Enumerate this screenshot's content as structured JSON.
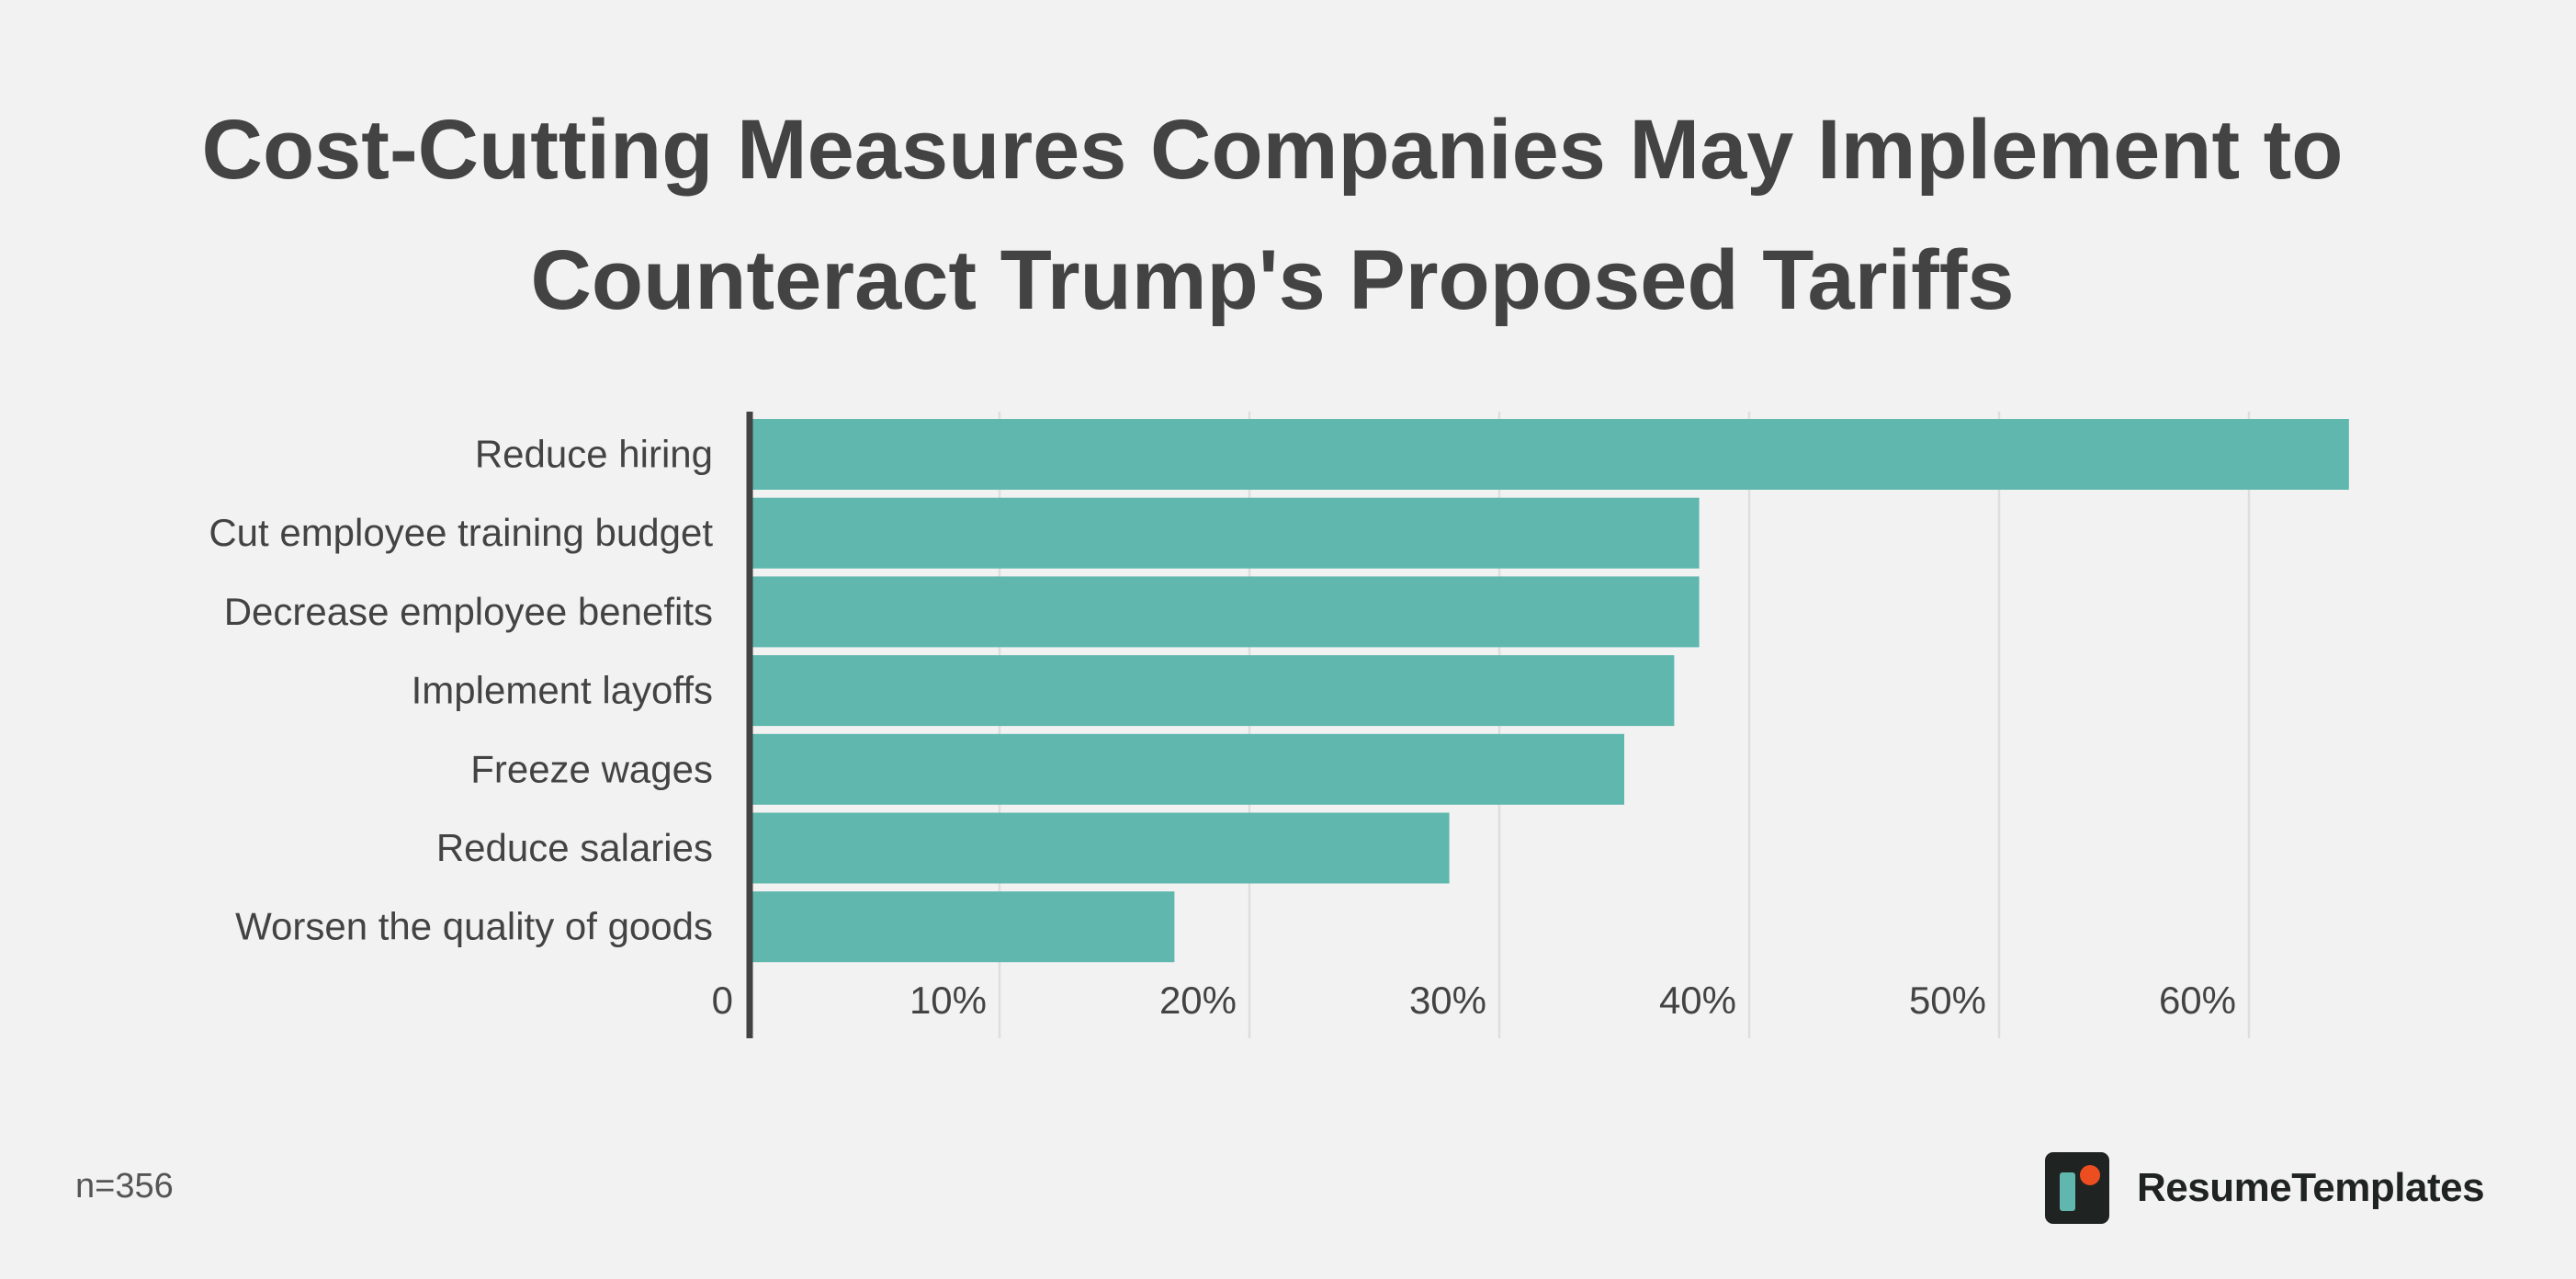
{
  "chart_data": {
    "type": "bar",
    "orientation": "horizontal",
    "title_lines": [
      "Cost-Cutting Measures Companies May Implement to",
      "Counteract Trump's Proposed Tariffs"
    ],
    "categories": [
      "Reduce hiring",
      "Cut employee training budget",
      "Decrease employee benefits",
      "Implement layoffs",
      "Freeze wages",
      "Reduce salaries",
      "Worsen the quality of goods"
    ],
    "values": [
      64,
      38,
      38,
      37,
      35,
      28,
      17
    ],
    "unit": "%",
    "xlim": [
      0,
      70
    ],
    "x_ticks": [
      0,
      10,
      20,
      30,
      40,
      50,
      60
    ],
    "x_tick_labels": [
      "0",
      "10%",
      "20%",
      "30%",
      "40%",
      "50%",
      "60%"
    ],
    "grid": true,
    "bar_color": "#5fb7ae",
    "grid_color": "#dedede",
    "axis_color": "#434343"
  },
  "footer": {
    "sample_size": "n=356",
    "brand_name": "ResumeTemplates"
  }
}
